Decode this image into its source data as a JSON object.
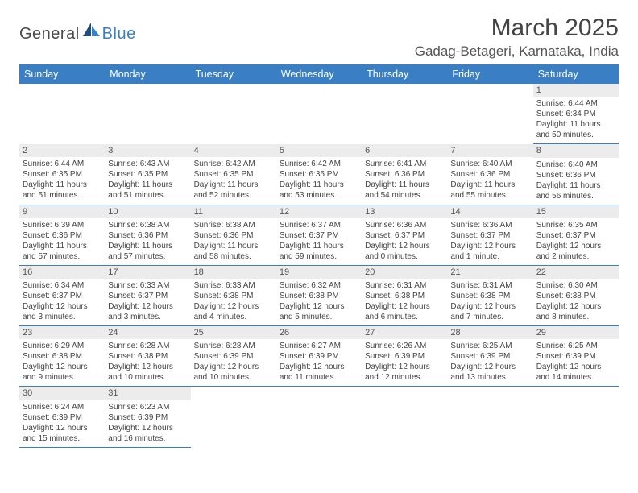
{
  "brand": {
    "word1": "General",
    "word2": "Blue"
  },
  "title": "March 2025",
  "location": "Gadag-Betageri, Karnataka, India",
  "colors": {
    "header_bg": "#3a7fc4",
    "header_text": "#ffffff",
    "daynum_bg": "#ececec",
    "rule": "#3a7fc4",
    "text": "#444444"
  },
  "weekdays": [
    "Sunday",
    "Monday",
    "Tuesday",
    "Wednesday",
    "Thursday",
    "Friday",
    "Saturday"
  ],
  "weeks": [
    [
      {
        "n": "",
        "sr": "",
        "ss": "",
        "dl": ""
      },
      {
        "n": "",
        "sr": "",
        "ss": "",
        "dl": ""
      },
      {
        "n": "",
        "sr": "",
        "ss": "",
        "dl": ""
      },
      {
        "n": "",
        "sr": "",
        "ss": "",
        "dl": ""
      },
      {
        "n": "",
        "sr": "",
        "ss": "",
        "dl": ""
      },
      {
        "n": "",
        "sr": "",
        "ss": "",
        "dl": ""
      },
      {
        "n": "1",
        "sr": "Sunrise: 6:44 AM",
        "ss": "Sunset: 6:34 PM",
        "dl": "Daylight: 11 hours and 50 minutes."
      }
    ],
    [
      {
        "n": "2",
        "sr": "Sunrise: 6:44 AM",
        "ss": "Sunset: 6:35 PM",
        "dl": "Daylight: 11 hours and 51 minutes."
      },
      {
        "n": "3",
        "sr": "Sunrise: 6:43 AM",
        "ss": "Sunset: 6:35 PM",
        "dl": "Daylight: 11 hours and 51 minutes."
      },
      {
        "n": "4",
        "sr": "Sunrise: 6:42 AM",
        "ss": "Sunset: 6:35 PM",
        "dl": "Daylight: 11 hours and 52 minutes."
      },
      {
        "n": "5",
        "sr": "Sunrise: 6:42 AM",
        "ss": "Sunset: 6:35 PM",
        "dl": "Daylight: 11 hours and 53 minutes."
      },
      {
        "n": "6",
        "sr": "Sunrise: 6:41 AM",
        "ss": "Sunset: 6:36 PM",
        "dl": "Daylight: 11 hours and 54 minutes."
      },
      {
        "n": "7",
        "sr": "Sunrise: 6:40 AM",
        "ss": "Sunset: 6:36 PM",
        "dl": "Daylight: 11 hours and 55 minutes."
      },
      {
        "n": "8",
        "sr": "Sunrise: 6:40 AM",
        "ss": "Sunset: 6:36 PM",
        "dl": "Daylight: 11 hours and 56 minutes."
      }
    ],
    [
      {
        "n": "9",
        "sr": "Sunrise: 6:39 AM",
        "ss": "Sunset: 6:36 PM",
        "dl": "Daylight: 11 hours and 57 minutes."
      },
      {
        "n": "10",
        "sr": "Sunrise: 6:38 AM",
        "ss": "Sunset: 6:36 PM",
        "dl": "Daylight: 11 hours and 57 minutes."
      },
      {
        "n": "11",
        "sr": "Sunrise: 6:38 AM",
        "ss": "Sunset: 6:36 PM",
        "dl": "Daylight: 11 hours and 58 minutes."
      },
      {
        "n": "12",
        "sr": "Sunrise: 6:37 AM",
        "ss": "Sunset: 6:37 PM",
        "dl": "Daylight: 11 hours and 59 minutes."
      },
      {
        "n": "13",
        "sr": "Sunrise: 6:36 AM",
        "ss": "Sunset: 6:37 PM",
        "dl": "Daylight: 12 hours and 0 minutes."
      },
      {
        "n": "14",
        "sr": "Sunrise: 6:36 AM",
        "ss": "Sunset: 6:37 PM",
        "dl": "Daylight: 12 hours and 1 minute."
      },
      {
        "n": "15",
        "sr": "Sunrise: 6:35 AM",
        "ss": "Sunset: 6:37 PM",
        "dl": "Daylight: 12 hours and 2 minutes."
      }
    ],
    [
      {
        "n": "16",
        "sr": "Sunrise: 6:34 AM",
        "ss": "Sunset: 6:37 PM",
        "dl": "Daylight: 12 hours and 3 minutes."
      },
      {
        "n": "17",
        "sr": "Sunrise: 6:33 AM",
        "ss": "Sunset: 6:37 PM",
        "dl": "Daylight: 12 hours and 3 minutes."
      },
      {
        "n": "18",
        "sr": "Sunrise: 6:33 AM",
        "ss": "Sunset: 6:38 PM",
        "dl": "Daylight: 12 hours and 4 minutes."
      },
      {
        "n": "19",
        "sr": "Sunrise: 6:32 AM",
        "ss": "Sunset: 6:38 PM",
        "dl": "Daylight: 12 hours and 5 minutes."
      },
      {
        "n": "20",
        "sr": "Sunrise: 6:31 AM",
        "ss": "Sunset: 6:38 PM",
        "dl": "Daylight: 12 hours and 6 minutes."
      },
      {
        "n": "21",
        "sr": "Sunrise: 6:31 AM",
        "ss": "Sunset: 6:38 PM",
        "dl": "Daylight: 12 hours and 7 minutes."
      },
      {
        "n": "22",
        "sr": "Sunrise: 6:30 AM",
        "ss": "Sunset: 6:38 PM",
        "dl": "Daylight: 12 hours and 8 minutes."
      }
    ],
    [
      {
        "n": "23",
        "sr": "Sunrise: 6:29 AM",
        "ss": "Sunset: 6:38 PM",
        "dl": "Daylight: 12 hours and 9 minutes."
      },
      {
        "n": "24",
        "sr": "Sunrise: 6:28 AM",
        "ss": "Sunset: 6:38 PM",
        "dl": "Daylight: 12 hours and 10 minutes."
      },
      {
        "n": "25",
        "sr": "Sunrise: 6:28 AM",
        "ss": "Sunset: 6:39 PM",
        "dl": "Daylight: 12 hours and 10 minutes."
      },
      {
        "n": "26",
        "sr": "Sunrise: 6:27 AM",
        "ss": "Sunset: 6:39 PM",
        "dl": "Daylight: 12 hours and 11 minutes."
      },
      {
        "n": "27",
        "sr": "Sunrise: 6:26 AM",
        "ss": "Sunset: 6:39 PM",
        "dl": "Daylight: 12 hours and 12 minutes."
      },
      {
        "n": "28",
        "sr": "Sunrise: 6:25 AM",
        "ss": "Sunset: 6:39 PM",
        "dl": "Daylight: 12 hours and 13 minutes."
      },
      {
        "n": "29",
        "sr": "Sunrise: 6:25 AM",
        "ss": "Sunset: 6:39 PM",
        "dl": "Daylight: 12 hours and 14 minutes."
      }
    ],
    [
      {
        "n": "30",
        "sr": "Sunrise: 6:24 AM",
        "ss": "Sunset: 6:39 PM",
        "dl": "Daylight: 12 hours and 15 minutes."
      },
      {
        "n": "31",
        "sr": "Sunrise: 6:23 AM",
        "ss": "Sunset: 6:39 PM",
        "dl": "Daylight: 12 hours and 16 minutes."
      },
      {
        "n": "",
        "sr": "",
        "ss": "",
        "dl": ""
      },
      {
        "n": "",
        "sr": "",
        "ss": "",
        "dl": ""
      },
      {
        "n": "",
        "sr": "",
        "ss": "",
        "dl": ""
      },
      {
        "n": "",
        "sr": "",
        "ss": "",
        "dl": ""
      },
      {
        "n": "",
        "sr": "",
        "ss": "",
        "dl": ""
      }
    ]
  ]
}
